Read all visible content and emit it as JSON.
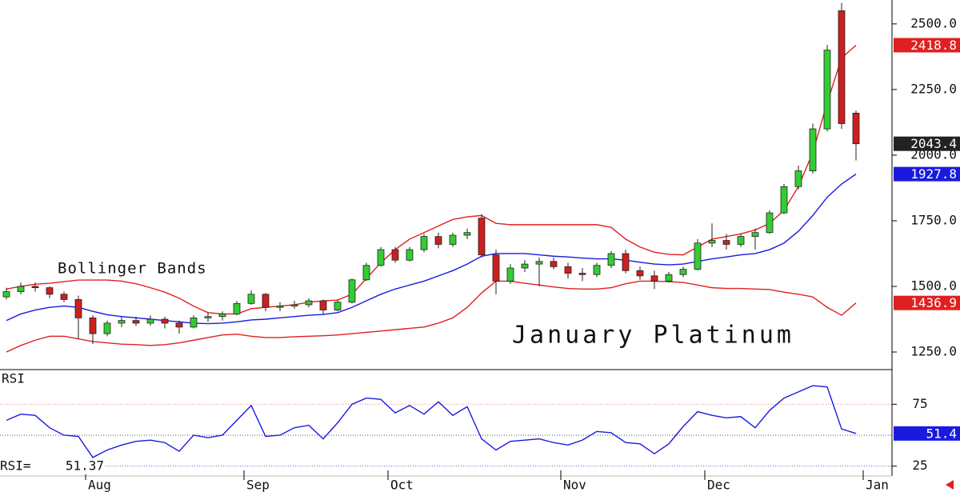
{
  "chart_data": [
    {
      "type": "candlestick",
      "annotations": [
        "Bollinger Bands",
        "January Platinum"
      ],
      "categories": [
        null,
        null,
        null,
        null,
        null,
        null,
        "Aug",
        null,
        null,
        null,
        null,
        null,
        null,
        null,
        null,
        null,
        null,
        "Sep",
        null,
        null,
        null,
        null,
        null,
        null,
        null,
        null,
        null,
        "Oct",
        null,
        null,
        null,
        null,
        null,
        null,
        null,
        null,
        null,
        null,
        null,
        "Nov",
        null,
        null,
        null,
        null,
        null,
        null,
        null,
        null,
        null,
        "Dec",
        null,
        null,
        null,
        null,
        null,
        null,
        null,
        null,
        null,
        null,
        "Jan"
      ],
      "open": [
        1460,
        1480,
        1500,
        1495,
        1470,
        1450,
        1380,
        1320,
        1360,
        1370,
        1360,
        1375,
        1360,
        1345,
        1380,
        1385,
        1395,
        1435,
        1470,
        1420,
        1425,
        1430,
        1445,
        1410,
        1440,
        1525,
        1580,
        1640,
        1600,
        1640,
        1690,
        1660,
        1695,
        1760,
        1620,
        1520,
        1570,
        1585,
        1595,
        1575,
        1550,
        1545,
        1580,
        1625,
        1560,
        1540,
        1520,
        1545,
        1565,
        1665,
        1675,
        1660,
        1690,
        1705,
        1780,
        1880,
        1940,
        2100,
        2550,
        2160,
        null
      ],
      "high": [
        1495,
        1515,
        1515,
        1500,
        1480,
        1465,
        1390,
        1370,
        1385,
        1385,
        1390,
        1385,
        1370,
        1390,
        1400,
        1405,
        1445,
        1485,
        1475,
        1440,
        1445,
        1455,
        1450,
        1450,
        1530,
        1590,
        1650,
        1650,
        1650,
        1700,
        1705,
        1705,
        1720,
        1775,
        1640,
        1585,
        1600,
        1610,
        1610,
        1590,
        1570,
        1590,
        1635,
        1640,
        1575,
        1560,
        1555,
        1575,
        1680,
        1740,
        1700,
        1700,
        1720,
        1790,
        1890,
        1960,
        2120,
        2420,
        2580,
        2170,
        null
      ],
      "low": [
        1450,
        1470,
        1480,
        1455,
        1440,
        1300,
        1280,
        1310,
        1345,
        1350,
        1350,
        1340,
        1320,
        1340,
        1365,
        1370,
        1390,
        1430,
        1405,
        1405,
        1415,
        1420,
        1395,
        1405,
        1435,
        1520,
        1575,
        1590,
        1595,
        1630,
        1645,
        1650,
        1680,
        1610,
        1470,
        1510,
        1555,
        1500,
        1565,
        1530,
        1520,
        1535,
        1570,
        1550,
        1525,
        1490,
        1515,
        1535,
        1560,
        1650,
        1640,
        1650,
        1640,
        1700,
        1775,
        1870,
        1930,
        2090,
        2100,
        1980,
        null
      ],
      "close": [
        1480,
        1500,
        1495,
        1470,
        1450,
        1380,
        1320,
        1360,
        1370,
        1360,
        1375,
        1360,
        1345,
        1380,
        1385,
        1395,
        1435,
        1470,
        1420,
        1425,
        1430,
        1445,
        1410,
        1440,
        1525,
        1580,
        1640,
        1600,
        1640,
        1690,
        1660,
        1695,
        1705,
        1620,
        1520,
        1570,
        1585,
        1595,
        1575,
        1550,
        1545,
        1580,
        1625,
        1560,
        1540,
        1520,
        1545,
        1565,
        1665,
        1675,
        1660,
        1690,
        1705,
        1780,
        1880,
        1940,
        2100,
        2400,
        2120,
        2043.4,
        null
      ],
      "up_color": "#33cc33",
      "down_color": "#cc2020",
      "last_tag_color": "#222222",
      "series": [
        {
          "color": "#e02020",
          "values": [
            1490,
            1500,
            1508,
            1512,
            1518,
            1524,
            1524,
            1524,
            1520,
            1510,
            1495,
            1478,
            1455,
            1425,
            1400,
            1395,
            1395,
            1415,
            1420,
            1425,
            1430,
            1440,
            1445,
            1448,
            1470,
            1530,
            1590,
            1640,
            1680,
            1705,
            1730,
            1755,
            1765,
            1770,
            1740,
            1735,
            1735,
            1735,
            1735,
            1735,
            1735,
            1735,
            1725,
            1680,
            1650,
            1630,
            1622,
            1620,
            1650,
            1680,
            1690,
            1700,
            1715,
            1740,
            1790,
            1880,
            2010,
            2200,
            2370,
            2418.8,
            null
          ]
        },
        {
          "color": "#1a1adf",
          "values": [
            1370,
            1395,
            1410,
            1420,
            1425,
            1420,
            1405,
            1392,
            1385,
            1380,
            1375,
            1370,
            1365,
            1360,
            1358,
            1360,
            1365,
            1372,
            1375,
            1380,
            1385,
            1390,
            1393,
            1400,
            1420,
            1445,
            1470,
            1490,
            1505,
            1520,
            1540,
            1560,
            1585,
            1615,
            1625,
            1625,
            1625,
            1620,
            1615,
            1612,
            1608,
            1605,
            1605,
            1600,
            1592,
            1585,
            1582,
            1585,
            1595,
            1605,
            1612,
            1620,
            1625,
            1640,
            1665,
            1710,
            1770,
            1840,
            1890,
            1927.8,
            null
          ]
        },
        {
          "color": "#e02020",
          "values": [
            1250,
            1275,
            1295,
            1310,
            1310,
            1300,
            1290,
            1285,
            1280,
            1278,
            1275,
            1278,
            1285,
            1295,
            1305,
            1315,
            1318,
            1310,
            1305,
            1305,
            1308,
            1310,
            1312,
            1315,
            1320,
            1325,
            1330,
            1335,
            1340,
            1345,
            1360,
            1380,
            1420,
            1475,
            1520,
            1520,
            1512,
            1505,
            1498,
            1492,
            1490,
            1490,
            1495,
            1510,
            1520,
            1520,
            1518,
            1515,
            1505,
            1495,
            1492,
            1492,
            1490,
            1488,
            1478,
            1470,
            1460,
            1420,
            1390,
            1436.9,
            null
          ]
        }
      ],
      "ylim": [
        1183,
        2591
      ],
      "yticks": [
        {
          "value": 2500,
          "label": "2500.0"
        },
        {
          "value": 2250,
          "label": "2250.0"
        },
        {
          "value": 2000,
          "label": "2000.0"
        },
        {
          "value": 1750,
          "label": "1750.0"
        },
        {
          "value": 1500,
          "label": "1500.0"
        },
        {
          "value": 1250,
          "label": "1250.0"
        }
      ]
    },
    {
      "type": "line",
      "title": "RSI",
      "readout_label": "RSI=",
      "color": "#1a1adf",
      "values": [
        62,
        67,
        66,
        56,
        50,
        49,
        32,
        38,
        42,
        45,
        46,
        44,
        37,
        50,
        48,
        50,
        62,
        74,
        49,
        50,
        56,
        58,
        47,
        60,
        75,
        80,
        79,
        68,
        74,
        67,
        77,
        66,
        73,
        47,
        38,
        45,
        46,
        47,
        44,
        42,
        46,
        53,
        52,
        44,
        43,
        35,
        43,
        57,
        69,
        66,
        64,
        65,
        56,
        70,
        80,
        85,
        90,
        89,
        55,
        51.37,
        null
      ],
      "value_labels": [
        null,
        null,
        null,
        null,
        null,
        null,
        null,
        null,
        null,
        null,
        null,
        null,
        null,
        null,
        null,
        null,
        null,
        null,
        null,
        null,
        null,
        null,
        null,
        null,
        null,
        null,
        null,
        null,
        null,
        null,
        null,
        null,
        null,
        null,
        null,
        null,
        null,
        null,
        null,
        null,
        null,
        null,
        null,
        null,
        null,
        null,
        null,
        null,
        null,
        null,
        null,
        null,
        null,
        null,
        null,
        null,
        null,
        null,
        null,
        "51.4",
        null
      ],
      "ref_lines": [
        {
          "value": 75,
          "color": "#f08080"
        },
        {
          "value": 50,
          "color": "#555555"
        },
        {
          "value": 25,
          "color": "#6666cc"
        }
      ],
      "ylim": [
        17,
        103
      ],
      "yticks": [
        75,
        25
      ]
    }
  ]
}
